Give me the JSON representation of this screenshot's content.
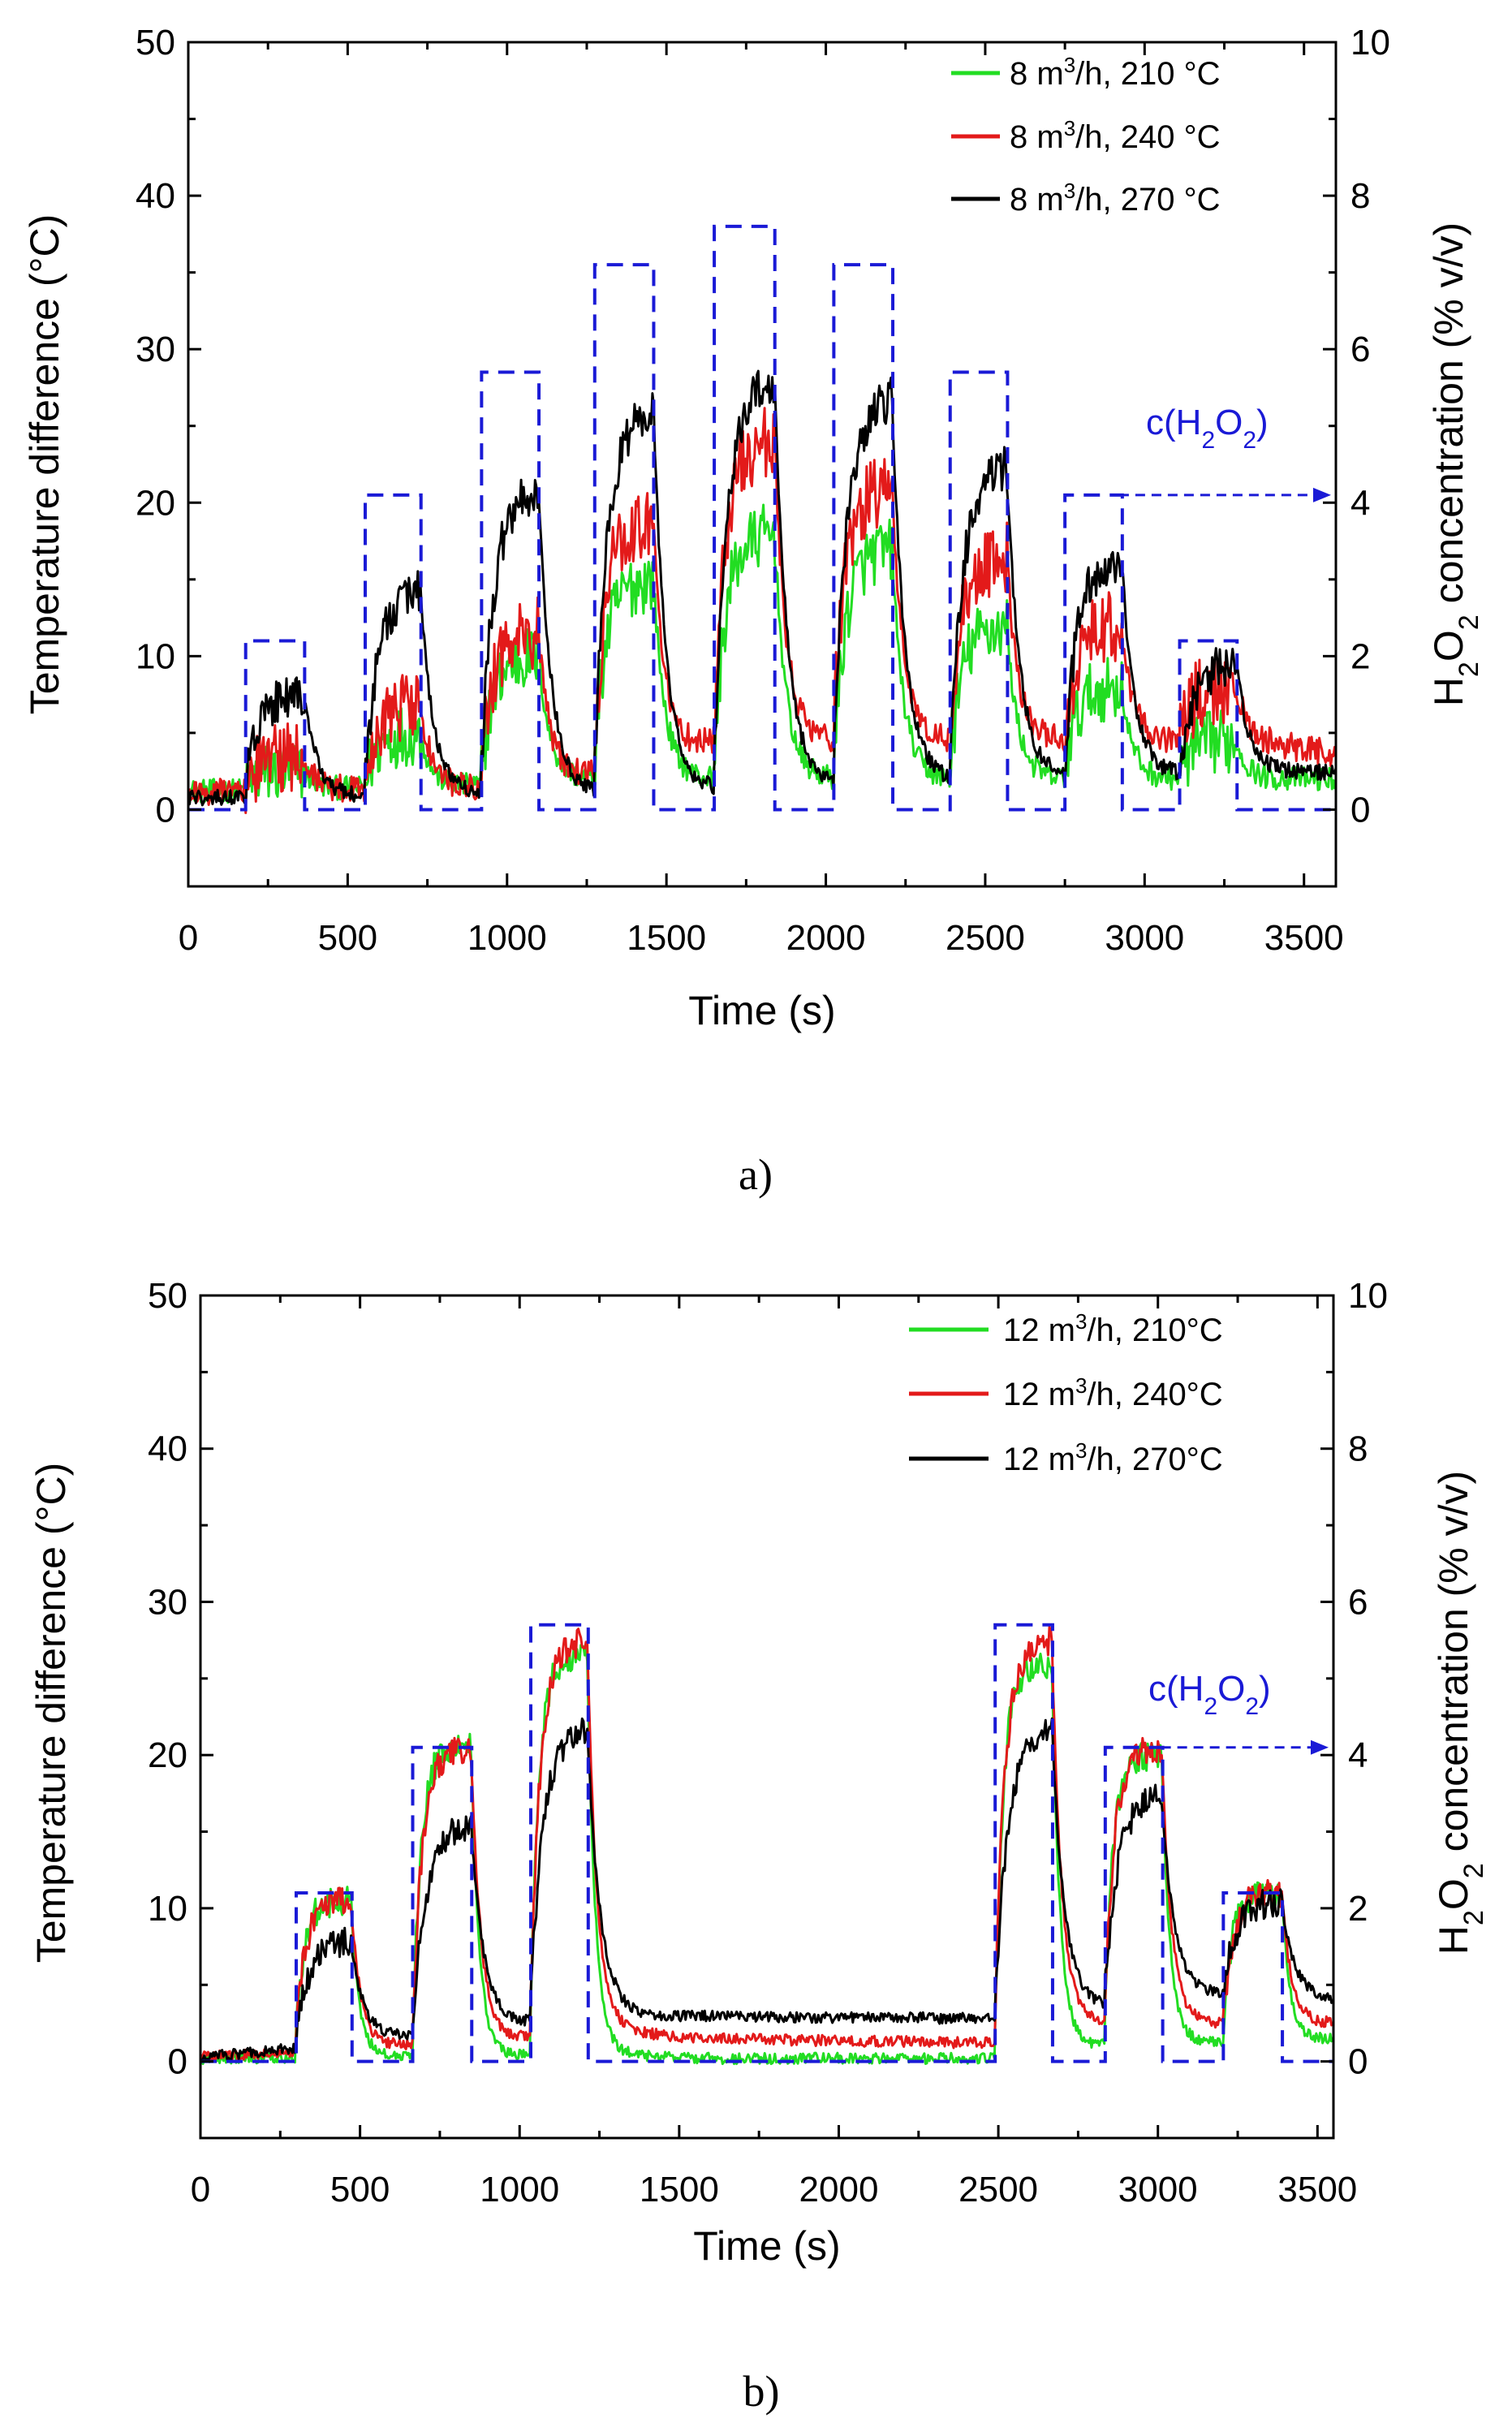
{
  "chart_data": [
    {
      "type": "line",
      "caption": "a)",
      "xlabel": "Time (s)",
      "ylabel": "Temperature difference (°C)",
      "y2label": "H2O2 concentration (% v/v)",
      "xlim": [
        0,
        3600
      ],
      "ylim": [
        -5,
        50
      ],
      "y2lim": [
        -1,
        10
      ],
      "xticks": [
        0,
        500,
        1000,
        1500,
        2000,
        2500,
        3000,
        3500
      ],
      "yticks": [
        0,
        10,
        20,
        30,
        40,
        50
      ],
      "y2ticks": [
        0,
        2,
        4,
        6,
        8,
        10
      ],
      "grid": false,
      "legend_position": "top-right",
      "annotation": {
        "text": "c(H2O2)",
        "x_start": 2920,
        "x_end": 3600,
        "y2": 4.1
      },
      "h2o2_series": {
        "name": "c(H2O2)",
        "color": "#1a1ad6",
        "style": "dashed",
        "pulses": [
          {
            "start": 180,
            "end": 365,
            "c": 2.2
          },
          {
            "start": 555,
            "end": 730,
            "c": 4.1
          },
          {
            "start": 920,
            "end": 1100,
            "c": 5.7
          },
          {
            "start": 1275,
            "end": 1460,
            "c": 7.1
          },
          {
            "start": 1650,
            "end": 1840,
            "c": 7.6
          },
          {
            "start": 2025,
            "end": 2210,
            "c": 7.1
          },
          {
            "start": 2390,
            "end": 2570,
            "c": 5.7
          },
          {
            "start": 2750,
            "end": 2930,
            "c": 4.1
          },
          {
            "start": 3110,
            "end": 3290,
            "c": 2.2
          }
        ]
      },
      "series": [
        {
          "name": "8 m³/h, 210 °C",
          "color": "#22dd22",
          "baseline": [
            [
              0,
              1.2
            ],
            [
              800,
              1.5
            ],
            [
              1200,
              2
            ],
            [
              1600,
              2
            ],
            [
              2400,
              2
            ],
            [
              3600,
              2
            ]
          ],
          "plateaus": [
            2.5,
            5,
            10,
            15,
            18,
            17,
            12,
            8,
            4.5
          ],
          "tau": 35,
          "noise": 1.3
        },
        {
          "name": "8 m³/h, 240 °C",
          "color": "#e31a1a",
          "baseline": [
            [
              0,
              1.2
            ],
            [
              900,
              1.5
            ],
            [
              1300,
              2.5
            ],
            [
              1600,
              4.5
            ],
            [
              2000,
              4.5
            ],
            [
              2400,
              4.5
            ],
            [
              3300,
              4.5
            ],
            [
              3600,
              3.5
            ]
          ],
          "plateaus": [
            3.5,
            7,
            11.5,
            19,
            24,
            21,
            16.5,
            12,
            8
          ],
          "tau": 35,
          "noise": 1.5
        },
        {
          "name": "8 m³/h, 270 °C",
          "color": "#000000",
          "baseline": [
            [
              0,
              0.8
            ],
            [
              1300,
              1
            ],
            [
              1800,
              1.5
            ],
            [
              2400,
              2
            ],
            [
              3600,
              2.5
            ]
          ],
          "plateaus": [
            7.5,
            14.5,
            21,
            26,
            28,
            27,
            22.5,
            16.5,
            9.5
          ],
          "tau": 40,
          "noise": 0.9
        }
      ]
    },
    {
      "type": "line",
      "caption": "b)",
      "xlabel": "Time (s)",
      "ylabel": "Temperature difference (°C)",
      "y2label": "H2O2 concentration (% v/v)",
      "xlim": [
        0,
        3550
      ],
      "ylim": [
        -5,
        50
      ],
      "y2lim": [
        -1,
        10
      ],
      "xticks": [
        0,
        500,
        1000,
        1500,
        2000,
        2500,
        3000,
        3500
      ],
      "yticks": [
        0,
        10,
        20,
        30,
        40,
        50
      ],
      "y2ticks": [
        0,
        2,
        4,
        6,
        8,
        10
      ],
      "grid": false,
      "legend_position": "top-right",
      "annotation": {
        "text": "c(H2O2)",
        "x_start": 3010,
        "x_end": 3550,
        "y2": 4.1
      },
      "h2o2_series": {
        "name": "c(H2O2)",
        "color": "#1a1ad6",
        "style": "dashed",
        "pulses": [
          {
            "start": 300,
            "end": 475,
            "c": 2.2
          },
          {
            "start": 665,
            "end": 850,
            "c": 4.1
          },
          {
            "start": 1035,
            "end": 1215,
            "c": 5.7
          },
          {
            "start": 2490,
            "end": 2670,
            "c": 5.7
          },
          {
            "start": 2835,
            "end": 3015,
            "c": 4.1
          },
          {
            "start": 3205,
            "end": 3390,
            "c": 2.2
          }
        ]
      },
      "series": [
        {
          "name": "12 m³/h, 210°C",
          "color": "#22dd22",
          "baseline": [
            [
              0,
              0.2
            ],
            [
              1300,
              0.5
            ],
            [
              1500,
              0.2
            ],
            [
              2450,
              0.2
            ],
            [
              2700,
              1
            ],
            [
              3550,
              1.5
            ]
          ],
          "plateaus": [
            10.5,
            20.5,
            26.5,
            26,
            20,
            11
          ],
          "tau": 25,
          "noise": 0.6
        },
        {
          "name": "12 m³/h, 240°C",
          "color": "#e31a1a",
          "baseline": [
            [
              0,
              0.3
            ],
            [
              1300,
              2
            ],
            [
              1500,
              1.5
            ],
            [
              2450,
              1.2
            ],
            [
              2700,
              2.5
            ],
            [
              3550,
              2.5
            ]
          ],
          "plateaus": [
            10.5,
            20.5,
            27.5,
            27.5,
            20.5,
            11
          ],
          "tau": 30,
          "noise": 0.6
        },
        {
          "name": "12 m³/h, 270°C",
          "color": "#000000",
          "baseline": [
            [
              0,
              0.3
            ],
            [
              1200,
              3
            ],
            [
              2450,
              2.8
            ],
            [
              2800,
              3.5
            ],
            [
              3200,
              4.5
            ],
            [
              3550,
              3.8
            ]
          ],
          "plateaus": [
            8,
            15.5,
            22,
            22,
            17.5,
            10.5
          ],
          "tau": 40,
          "noise": 0.6
        }
      ]
    }
  ]
}
